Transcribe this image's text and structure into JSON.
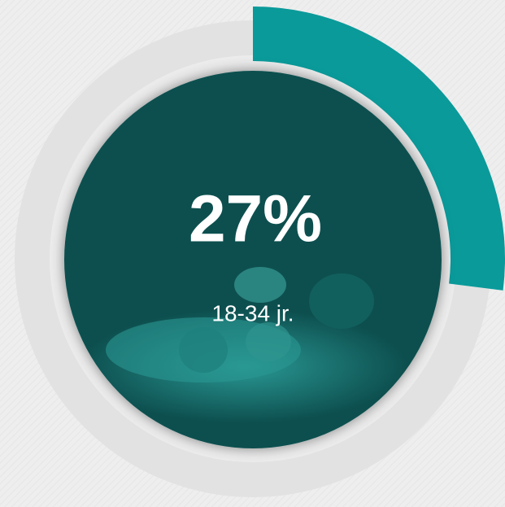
{
  "chart_data": {
    "type": "pie",
    "categories": [
      "18-34 jr."
    ],
    "values": [
      27
    ],
    "value_labels": [
      "27%"
    ],
    "color": "#0a9a9a"
  }
}
